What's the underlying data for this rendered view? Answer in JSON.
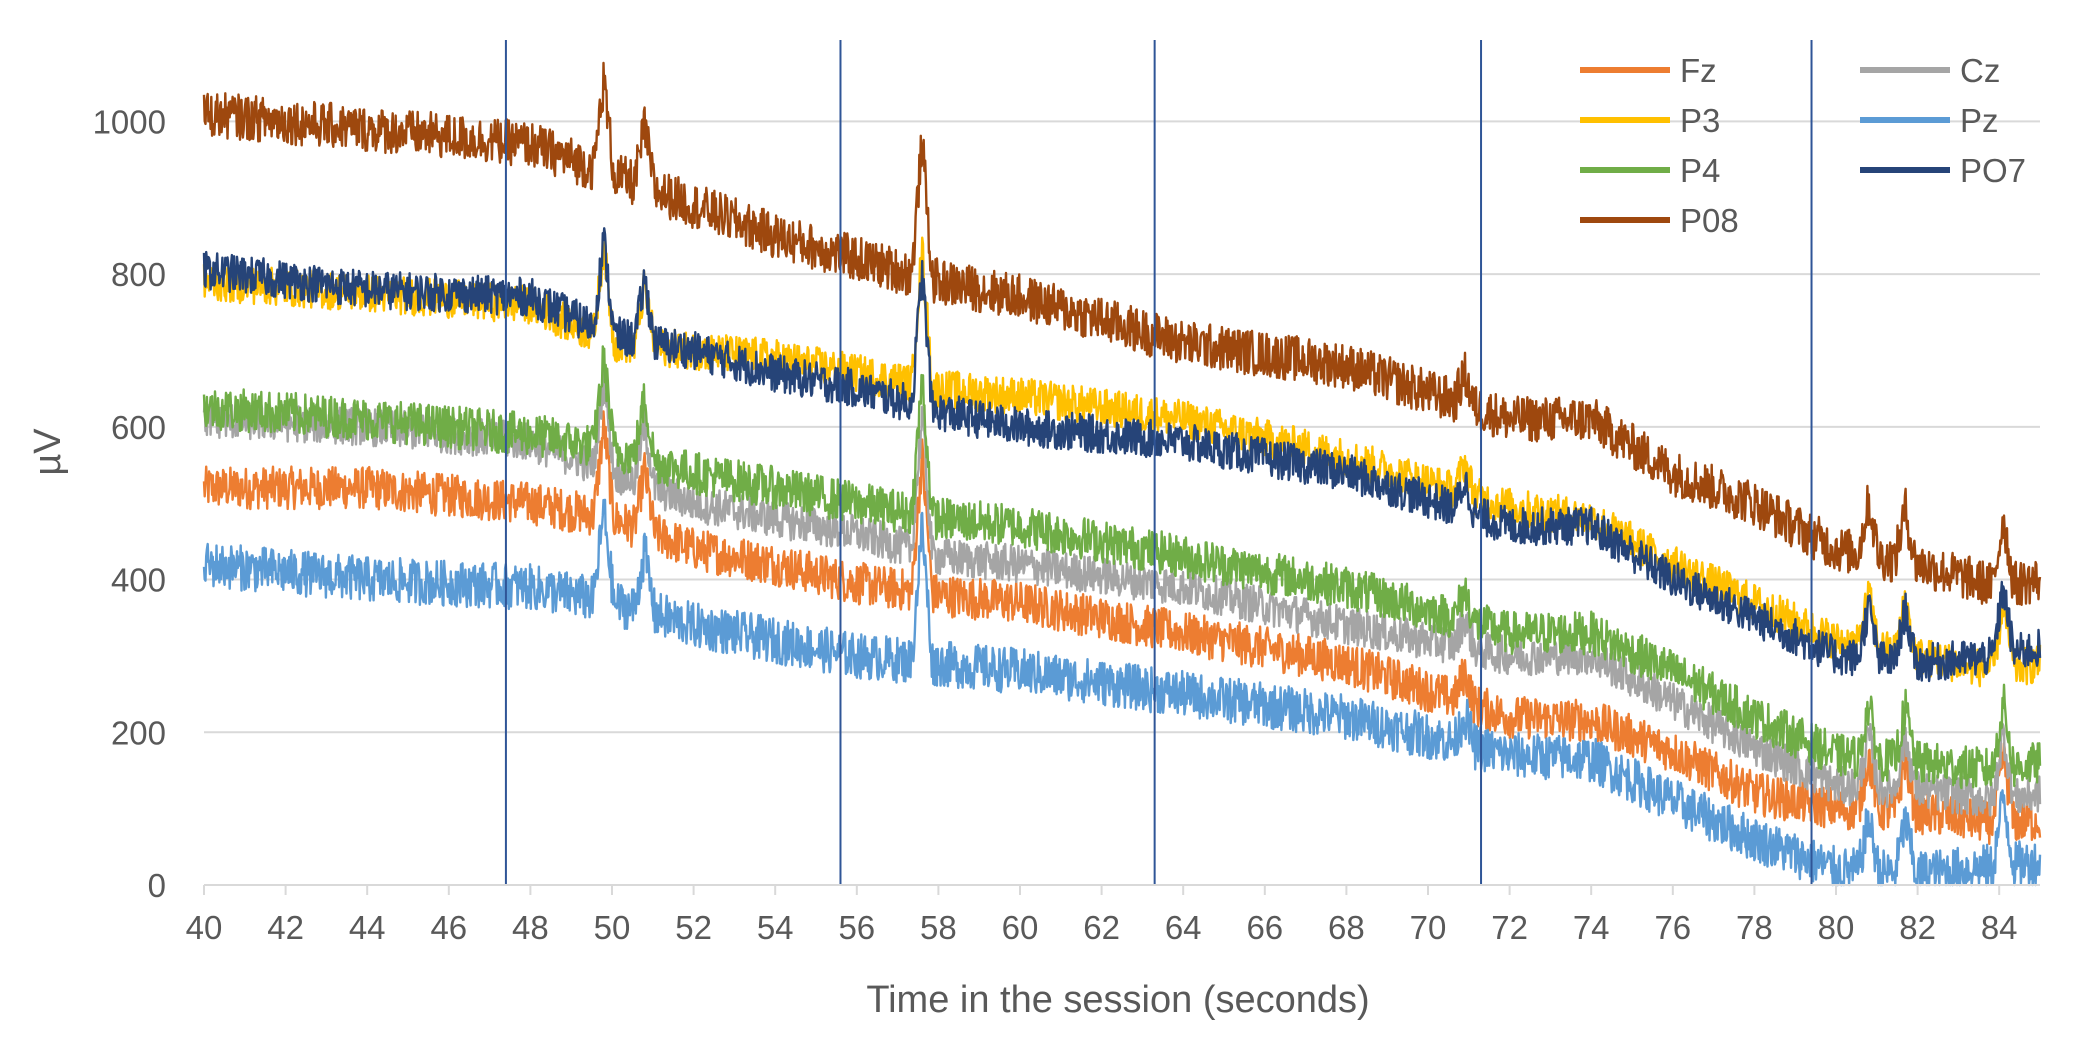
{
  "chart_data": {
    "type": "line",
    "title": "",
    "xlabel": "Time in the session (seconds)",
    "ylabel": "µV",
    "xlim": [
      40,
      85
    ],
    "ylim": [
      0,
      1100
    ],
    "x_ticks": [
      40,
      42,
      44,
      46,
      48,
      50,
      52,
      54,
      56,
      58,
      60,
      62,
      64,
      66,
      68,
      70,
      72,
      74,
      76,
      78,
      80,
      82,
      84
    ],
    "x_tick_labels": [
      "40",
      "42",
      "44",
      "46",
      "48",
      "50",
      "52",
      "54",
      "56",
      "58",
      "60",
      "62",
      "64",
      "66",
      "68",
      "70",
      "72",
      "74",
      "76",
      "78",
      "80",
      "82",
      "84"
    ],
    "y_ticks": [
      0,
      200,
      400,
      600,
      800,
      1000
    ],
    "y_tick_labels": [
      "0",
      "200",
      "400",
      "600",
      "800",
      "1000"
    ],
    "grid": "horizontal",
    "legend_position": "top-right",
    "vertical_markers": [
      47.4,
      55.6,
      63.3,
      71.3,
      79.4
    ],
    "marker_color": "#2F5597",
    "series": [
      {
        "name": "Fz",
        "color": "#ED7D31",
        "noise": 28,
        "x": [
          40,
          44,
          48,
          50,
          52,
          54,
          56,
          58,
          60,
          64,
          68,
          72,
          74,
          76,
          78,
          80,
          82,
          84,
          85
        ],
        "y": [
          520,
          520,
          500,
          480,
          440,
          420,
          395,
          380,
          370,
          330,
          290,
          220,
          215,
          175,
          120,
          100,
          95,
          80,
          85
        ]
      },
      {
        "name": "Cz",
        "color": "#A5A5A5",
        "noise": 25,
        "x": [
          40,
          44,
          48,
          50,
          52,
          54,
          56,
          58,
          60,
          64,
          68,
          72,
          74,
          76,
          78,
          80,
          82,
          84,
          85
        ],
        "y": [
          610,
          600,
          580,
          540,
          500,
          480,
          460,
          430,
          420,
          390,
          340,
          300,
          300,
          240,
          180,
          130,
          125,
          110,
          120
        ]
      },
      {
        "name": "P3",
        "color": "#FFC000",
        "noise": 25,
        "x": [
          40,
          44,
          48,
          50,
          52,
          54,
          56,
          58,
          60,
          64,
          68,
          72,
          74,
          76,
          78,
          80,
          82,
          84,
          85
        ],
        "y": [
          790,
          775,
          760,
          710,
          700,
          690,
          670,
          650,
          640,
          610,
          560,
          495,
          480,
          420,
          370,
          320,
          300,
          280,
          290
        ]
      },
      {
        "name": "Pz",
        "color": "#5B9BD5",
        "noise": 30,
        "x": [
          40,
          44,
          48,
          50,
          52,
          54,
          56,
          58,
          60,
          64,
          68,
          72,
          74,
          76,
          78,
          80,
          82,
          84,
          85
        ],
        "y": [
          420,
          400,
          390,
          370,
          340,
          320,
          300,
          290,
          280,
          250,
          220,
          170,
          165,
          110,
          60,
          20,
          15,
          25,
          30
        ]
      },
      {
        "name": "P4",
        "color": "#70AD47",
        "noise": 28,
        "x": [
          40,
          44,
          48,
          50,
          52,
          54,
          56,
          58,
          60,
          64,
          68,
          72,
          74,
          76,
          78,
          80,
          82,
          84,
          85
        ],
        "y": [
          625,
          610,
          590,
          570,
          540,
          520,
          500,
          480,
          470,
          430,
          390,
          330,
          330,
          280,
          220,
          170,
          160,
          150,
          160
        ]
      },
      {
        "name": "PO7",
        "color": "#264478",
        "noise": 25,
        "x": [
          40,
          44,
          48,
          50,
          52,
          54,
          56,
          58,
          60,
          64,
          68,
          72,
          74,
          76,
          78,
          80,
          82,
          84,
          85
        ],
        "y": [
          805,
          780,
          770,
          720,
          700,
          670,
          650,
          620,
          600,
          580,
          540,
          470,
          470,
          400,
          350,
          300,
          290,
          300,
          310
        ]
      },
      {
        "name": "P08",
        "color": "#9E480E",
        "noise": 30,
        "x": [
          40,
          44,
          48,
          50,
          52,
          54,
          56,
          58,
          60,
          64,
          68,
          72,
          74,
          76,
          78,
          80,
          82,
          84,
          85
        ],
        "y": [
          1010,
          990,
          970,
          930,
          890,
          850,
          820,
          790,
          770,
          710,
          680,
          610,
          610,
          540,
          500,
          440,
          420,
          390,
          400
        ]
      }
    ]
  }
}
